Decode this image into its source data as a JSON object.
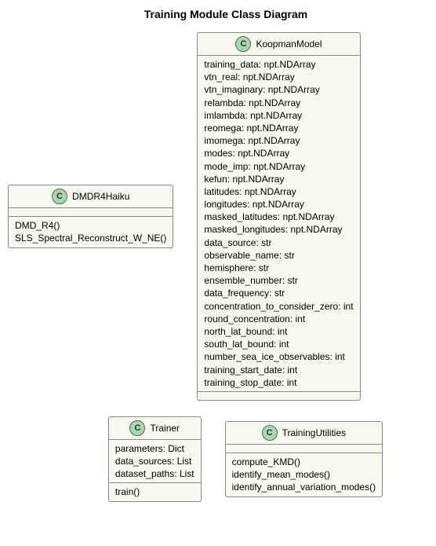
{
  "diagram": {
    "title": "Training Module Class Diagram",
    "icon_letter": "C",
    "colors": {
      "box_bg": "#f8f8f0",
      "box_border": "#888888",
      "icon_bg": "#a8d8b0",
      "icon_border": "#4a7050"
    },
    "classes": {
      "dmdr4haiku": {
        "name": "DMDR4Haiku",
        "attributes": [],
        "methods": [
          "DMD_R4()",
          "SLS_Spectral_Reconstruct_W_NE()"
        ]
      },
      "koopman": {
        "name": "KoopmanModel",
        "attributes": [
          "training_data: npt.NDArray",
          "vtn_real: npt.NDArray",
          "vtn_imaginary: npt.NDArray",
          "relambda: npt.NDArray",
          "imlambda: npt.NDArray",
          "reomega: npt.NDArray",
          "imomega: npt.NDArray",
          "modes: npt.NDArray",
          "mode_imp: npt.NDArray",
          "kefun: npt.NDArray",
          "latitudes: npt.NDArray",
          "longitudes: npt.NDArray",
          "masked_latitudes: npt.NDArray",
          "masked_longitudes: npt.NDArray",
          "data_source: str",
          "observable_name: str",
          "hemisphere: str",
          "ensemble_number: str",
          "data_frequency: str",
          "concentration_to_consider_zero: int",
          "round_concentration: int",
          "north_lat_bound: int",
          "south_lat_bound: int",
          "number_sea_ice_observables: int",
          "training_start_date: int",
          "training_stop_date: int"
        ],
        "methods": []
      },
      "trainer": {
        "name": "Trainer",
        "attributes": [
          "parameters: Dict",
          "data_sources: List",
          "dataset_paths: List"
        ],
        "methods": [
          "train()"
        ]
      },
      "training_utilities": {
        "name": "TrainingUtilities",
        "attributes": [],
        "methods": [
          "compute_KMD()",
          "identify_mean_modes()",
          "identify_annual_variation_modes()"
        ]
      }
    }
  }
}
